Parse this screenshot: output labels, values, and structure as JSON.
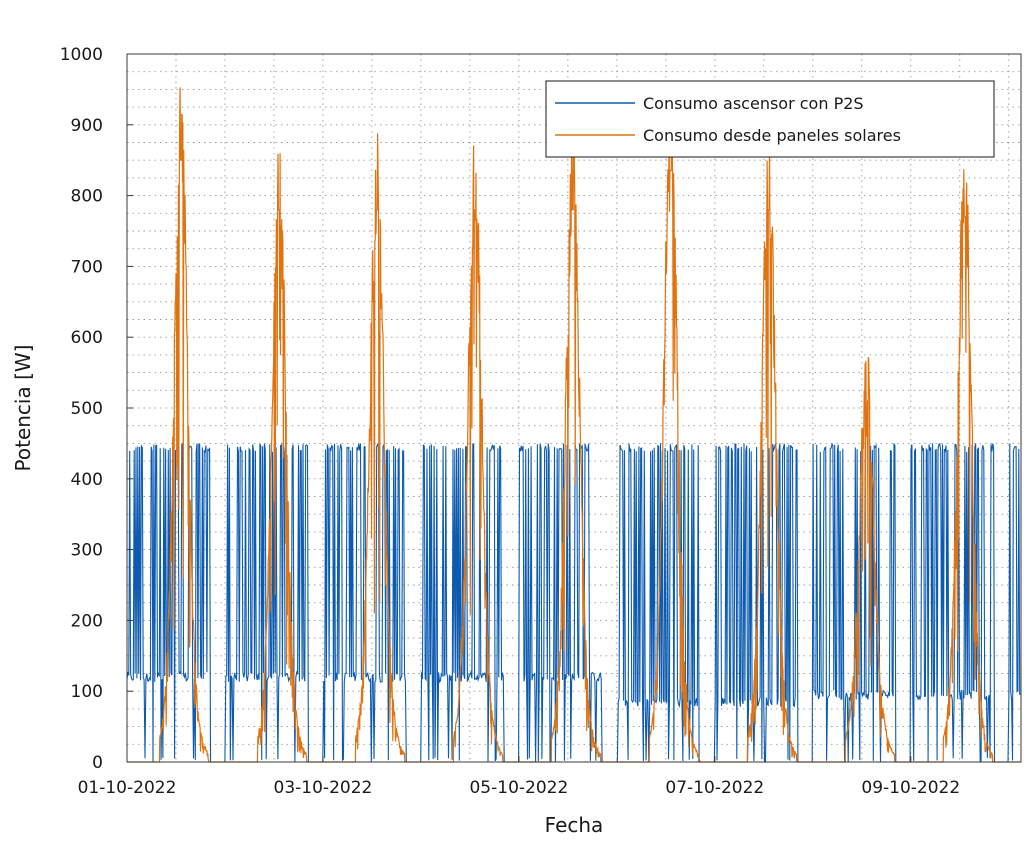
{
  "chart_data": {
    "type": "line",
    "title": "",
    "xlabel": "Fecha",
    "ylabel": "Potencia [W]",
    "xlim": [
      "2022-10-01",
      "2022-10-10T03:00"
    ],
    "ylim": [
      0,
      1000
    ],
    "yticks": [
      0,
      100,
      200,
      300,
      400,
      500,
      600,
      700,
      800,
      900,
      1000
    ],
    "xticks": [
      "01-10-2022",
      "03-10-2022",
      "05-10-2022",
      "07-10-2022",
      "09-10-2022"
    ],
    "grid": true,
    "legend_position": "top-right",
    "series": [
      {
        "name": "Consumo ascensor con P2S",
        "color": "#0c5bb0",
        "style": "dense on/off switching between ~0 and ~450 W; active 00:00–~20:00 each day, base level ~100–120 W",
        "daily": [
          {
            "date": "2022-10-01",
            "high": 450,
            "base": 120
          },
          {
            "date": "2022-10-02",
            "high": 450,
            "base": 120
          },
          {
            "date": "2022-10-03",
            "high": 450,
            "base": 120
          },
          {
            "date": "2022-10-04",
            "high": 450,
            "base": 120
          },
          {
            "date": "2022-10-05",
            "high": 450,
            "base": 120
          },
          {
            "date": "2022-10-06",
            "high": 450,
            "base": 85
          },
          {
            "date": "2022-10-07",
            "high": 450,
            "base": 85
          },
          {
            "date": "2022-10-08",
            "high": 450,
            "base": 95
          },
          {
            "date": "2022-10-09",
            "high": 450,
            "base": 95
          },
          {
            "date": "2022-10-10",
            "high": 450,
            "base": 95
          }
        ]
      },
      {
        "name": "Consumo desde paneles solares",
        "color": "#e0730f",
        "style": "daily solar bell curve from ~08:00 to ~20:00, peak around 13:00",
        "peaks": [
          {
            "date": "2022-10-01",
            "peak": 850
          },
          {
            "date": "2022-10-02",
            "peak": 780
          },
          {
            "date": "2022-10-03",
            "peak": 780
          },
          {
            "date": "2022-10-04",
            "peak": 780
          },
          {
            "date": "2022-10-05",
            "peak": 780
          },
          {
            "date": "2022-10-06",
            "peak": 835
          },
          {
            "date": "2022-10-07",
            "peak": 780
          },
          {
            "date": "2022-10-08",
            "peak": 460
          },
          {
            "date": "2022-10-09",
            "peak": 770
          }
        ]
      }
    ]
  }
}
